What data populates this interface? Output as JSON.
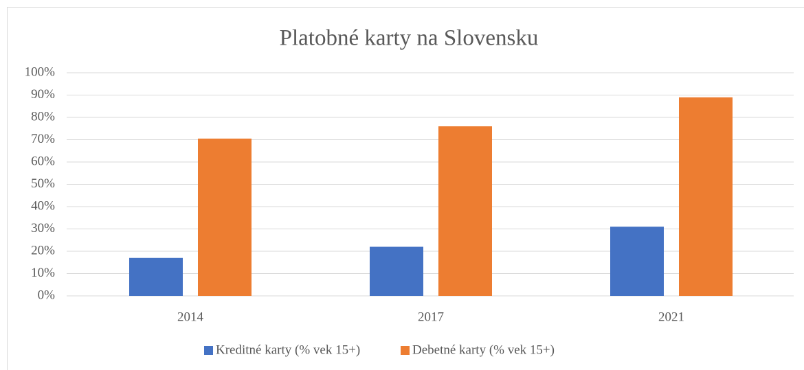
{
  "chart_data": {
    "type": "bar",
    "title": "Platobné karty na Slovensku",
    "categories": [
      "2014",
      "2017",
      "2021"
    ],
    "series": [
      {
        "name": "Kreditné karty (% vek 15+)",
        "color": "#4472c4",
        "values": [
          17,
          22,
          31
        ]
      },
      {
        "name": "Debetné karty (% vek 15+)",
        "color": "#ed7d31",
        "values": [
          70.5,
          76,
          89
        ]
      }
    ],
    "ylim": [
      0,
      100
    ],
    "yticks": [
      {
        "value": 0,
        "label": "0%"
      },
      {
        "value": 10,
        "label": "10%"
      },
      {
        "value": 20,
        "label": "20%"
      },
      {
        "value": 30,
        "label": "30%"
      },
      {
        "value": 40,
        "label": "40%"
      },
      {
        "value": 50,
        "label": "50%"
      },
      {
        "value": 60,
        "label": "60%"
      },
      {
        "value": 70,
        "label": "70%"
      },
      {
        "value": 80,
        "label": "80%"
      },
      {
        "value": 90,
        "label": "90%"
      },
      {
        "value": 100,
        "label": "100%"
      }
    ],
    "grid": true,
    "legend": "bottom"
  }
}
